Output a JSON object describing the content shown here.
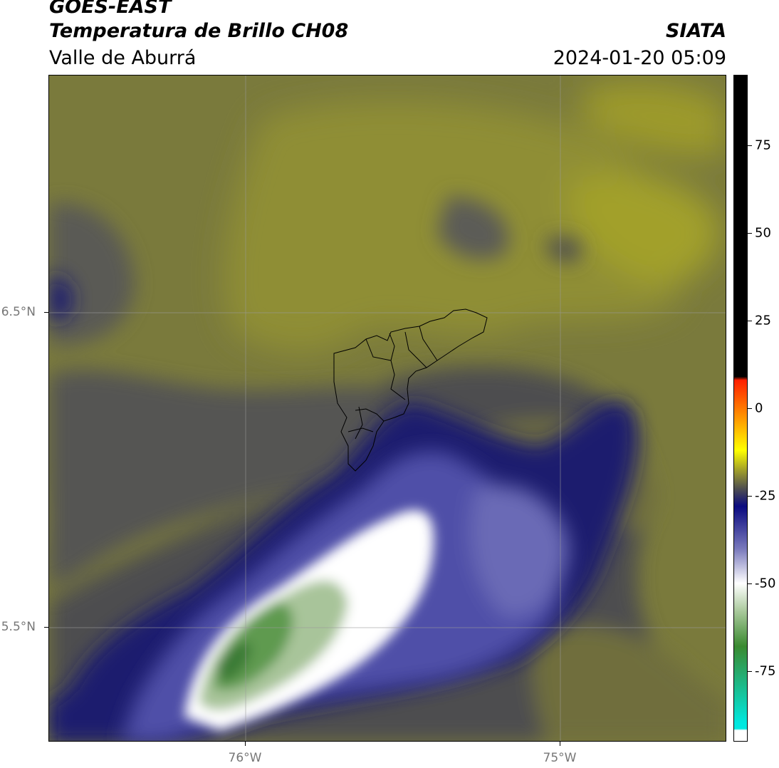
{
  "header": {
    "satellite": "GOES-EAST",
    "product": "Temperatura de Brillo CH08",
    "region": "Valle de Aburrá",
    "organization": "SIATA",
    "datetime": "2024-01-20 05:09"
  },
  "map": {
    "lat_labels": [
      "6.5°N",
      "5.5°N"
    ],
    "lon_labels": [
      "76°W",
      "75°W"
    ]
  },
  "colorbar": {
    "tick_labels": [
      "75",
      "50",
      "25",
      "0",
      "-25",
      "-50",
      "-75"
    ],
    "tick_values": [
      75,
      50,
      25,
      0,
      -25,
      -50,
      -75
    ],
    "range": [
      -95,
      95
    ],
    "colors": {
      "warm": "#000000",
      "red": "#ff2000",
      "orange": "#ff9900",
      "yellow": "#ffff00",
      "olive": "#9c9a2c",
      "gray": "#4e4e50",
      "navy": "#0a0a80",
      "white": "#ffffff",
      "green": "#3a8a30",
      "cyan": "#00e8e0"
    }
  }
}
